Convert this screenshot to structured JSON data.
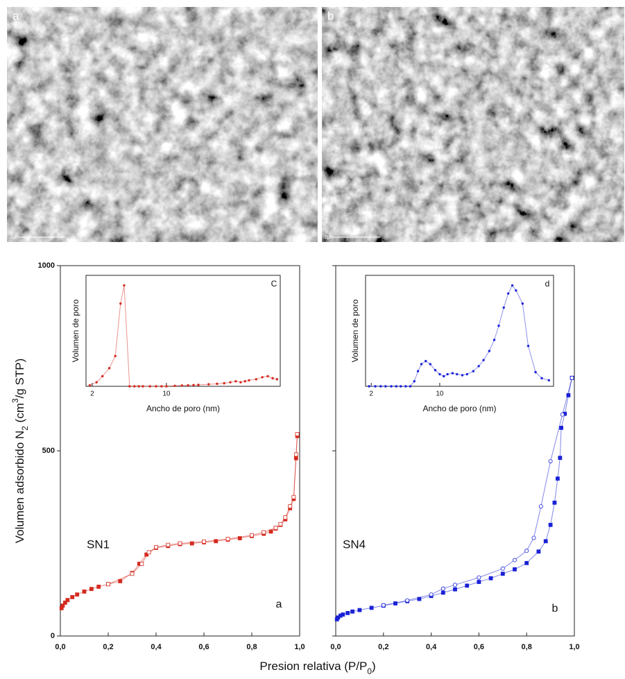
{
  "images": [
    {
      "label": "a",
      "scale_bar": "2µm"
    },
    {
      "label": "b",
      "scale_bar": "2µm"
    }
  ],
  "chart_data": [
    {
      "type": "line",
      "y_label": [
        "Volumen adsorbido N",
        "2",
        " (cm",
        "3",
        "/g STP)"
      ],
      "x_label": [
        "Presion relativa (P/P",
        "0",
        ")"
      ],
      "xlim": [
        0,
        1
      ],
      "ylim": [
        0,
        1000
      ],
      "xticks": [
        {
          "value": 0,
          "label": "0,0"
        },
        {
          "value": 0.2,
          "label": "0,2"
        },
        {
          "value": 0.4,
          "label": "0,4"
        },
        {
          "value": 0.6,
          "label": "0,6"
        },
        {
          "value": 0.8,
          "label": "0,8"
        },
        {
          "value": 1,
          "label": "1,0"
        }
      ],
      "yticks": [
        0,
        500,
        1000
      ],
      "ytick_labels": true,
      "annotations": [
        "SN1",
        "a"
      ],
      "series": [
        {
          "color": "#d42a1f",
          "marker": "square",
          "filled": true,
          "x": [
            0.005,
            0.01,
            0.02,
            0.03,
            0.05,
            0.07,
            0.1,
            0.13,
            0.16,
            0.2,
            0.25,
            0.3,
            0.33,
            0.36,
            0.4,
            0.45,
            0.5,
            0.55,
            0.6,
            0.65,
            0.7,
            0.75,
            0.8,
            0.85,
            0.88,
            0.9,
            0.92,
            0.94,
            0.96,
            0.975,
            0.985,
            0.99
          ],
          "values": [
            75,
            82,
            90,
            97,
            105,
            112,
            120,
            127,
            133,
            140,
            148,
            170,
            195,
            220,
            238,
            243,
            248,
            250,
            253,
            256,
            260,
            264,
            270,
            276,
            282,
            290,
            300,
            315,
            345,
            370,
            480,
            540
          ]
        },
        {
          "color": "#d42a1f",
          "marker": "square",
          "filled": false,
          "x": [
            0.99,
            0.985,
            0.975,
            0.96,
            0.94,
            0.92,
            0.9,
            0.85,
            0.8,
            0.7,
            0.6,
            0.5,
            0.45,
            0.4,
            0.37,
            0.34,
            0.3,
            0.2
          ],
          "values": [
            545,
            490,
            375,
            350,
            320,
            302,
            292,
            280,
            272,
            262,
            255,
            250,
            246,
            240,
            226,
            195,
            168,
            140
          ]
        }
      ]
    },
    {
      "type": "line",
      "xlim": [
        0,
        1
      ],
      "ylim": [
        0,
        1000
      ],
      "xticks": [
        {
          "value": 0,
          "label": "0,0"
        },
        {
          "value": 0.2,
          "label": "0,2"
        },
        {
          "value": 0.4,
          "label": "0,4"
        },
        {
          "value": 0.6,
          "label": "0,6"
        },
        {
          "value": 0.8,
          "label": "0,8"
        },
        {
          "value": 1,
          "label": "1,0"
        }
      ],
      "yticks": [
        0,
        500,
        1000
      ],
      "ytick_labels": false,
      "annotations": [
        "SN4",
        "b"
      ],
      "series": [
        {
          "color": "#1a22d6",
          "marker": "square",
          "filled": true,
          "x": [
            0.005,
            0.01,
            0.02,
            0.03,
            0.05,
            0.07,
            0.1,
            0.15,
            0.2,
            0.25,
            0.3,
            0.35,
            0.4,
            0.45,
            0.5,
            0.55,
            0.6,
            0.65,
            0.7,
            0.75,
            0.8,
            0.85,
            0.88,
            0.9,
            0.917,
            0.93,
            0.94,
            0.945,
            0.96,
            0.975,
            0.99
          ],
          "values": [
            45,
            50,
            55,
            58,
            62,
            66,
            70,
            76,
            82,
            88,
            94,
            100,
            108,
            117,
            126,
            136,
            146,
            156,
            168,
            180,
            197,
            228,
            256,
            300,
            360,
            425,
            481,
            562,
            600,
            650,
            697
          ]
        },
        {
          "color": "#1a22d6",
          "marker": "circle",
          "filled": false,
          "x": [
            0.99,
            0.95,
            0.9,
            0.86,
            0.83,
            0.8,
            0.75,
            0.7,
            0.6,
            0.5,
            0.45,
            0.4,
            0.3,
            0.2
          ],
          "values": [
            697,
            598,
            472,
            350,
            265,
            230,
            205,
            182,
            158,
            138,
            128,
            112,
            96,
            83
          ]
        }
      ]
    },
    {
      "type": "line",
      "xscale": "log",
      "y_label": [
        "Volumen de poro"
      ],
      "x_label": [
        "Ancho de poro (nm)"
      ],
      "xlim": [
        1.75,
        118
      ],
      "ylim": [
        0,
        1.1
      ],
      "xticks": [
        2,
        10
      ],
      "annotations": [
        "C"
      ],
      "series": [
        {
          "color": "#d42a1f",
          "marker": "dot",
          "filled": true,
          "x": [
            1.9,
            2.2,
            2.5,
            2.9,
            3.3,
            3.7,
            4.0,
            4.5,
            5,
            5.5,
            6,
            7,
            8,
            9,
            10,
            12,
            14,
            16,
            18,
            20,
            25,
            30,
            35,
            40,
            45,
            50,
            55,
            60,
            70,
            80,
            90,
            100,
            110
          ],
          "values": [
            0.01,
            0.04,
            0.1,
            0.18,
            0.3,
            0.82,
            1.0,
            0,
            0,
            0,
            0,
            0,
            0,
            0,
            0,
            0.005,
            0.008,
            0.01,
            0.012,
            0.015,
            0.02,
            0.025,
            0.03,
            0.04,
            0.05,
            0.04,
            0.05,
            0.06,
            0.07,
            0.09,
            0.1,
            0.08,
            0.07
          ]
        }
      ]
    },
    {
      "type": "line",
      "xscale": "log",
      "y_label": [
        "Volumen de poro"
      ],
      "x_label": [
        "Ancho de poro (nm)"
      ],
      "xlim": [
        1.75,
        145
      ],
      "ylim": [
        0,
        1.1
      ],
      "xticks": [
        2,
        10
      ],
      "annotations": [
        "d"
      ],
      "series": [
        {
          "color": "#1a22d6",
          "marker": "dot",
          "filled": true,
          "x": [
            1.9,
            2.2,
            2.5,
            2.8,
            3.2,
            3.6,
            4,
            4.5,
            5,
            5.5,
            6,
            6.5,
            7.2,
            8,
            9,
            10,
            11,
            12,
            13.5,
            15,
            17,
            19,
            22,
            25,
            28,
            32,
            36,
            40,
            45,
            50,
            55,
            60,
            70,
            80,
            95,
            110,
            130
          ],
          "values": [
            0,
            0,
            0,
            0,
            0,
            0,
            0,
            0,
            0,
            0.05,
            0.15,
            0.22,
            0.25,
            0.22,
            0.16,
            0.12,
            0.1,
            0.12,
            0.13,
            0.12,
            0.11,
            0.12,
            0.15,
            0.2,
            0.26,
            0.35,
            0.46,
            0.6,
            0.78,
            0.92,
            1.0,
            0.95,
            0.82,
            0.4,
            0.14,
            0.08,
            0.06
          ]
        }
      ]
    }
  ]
}
